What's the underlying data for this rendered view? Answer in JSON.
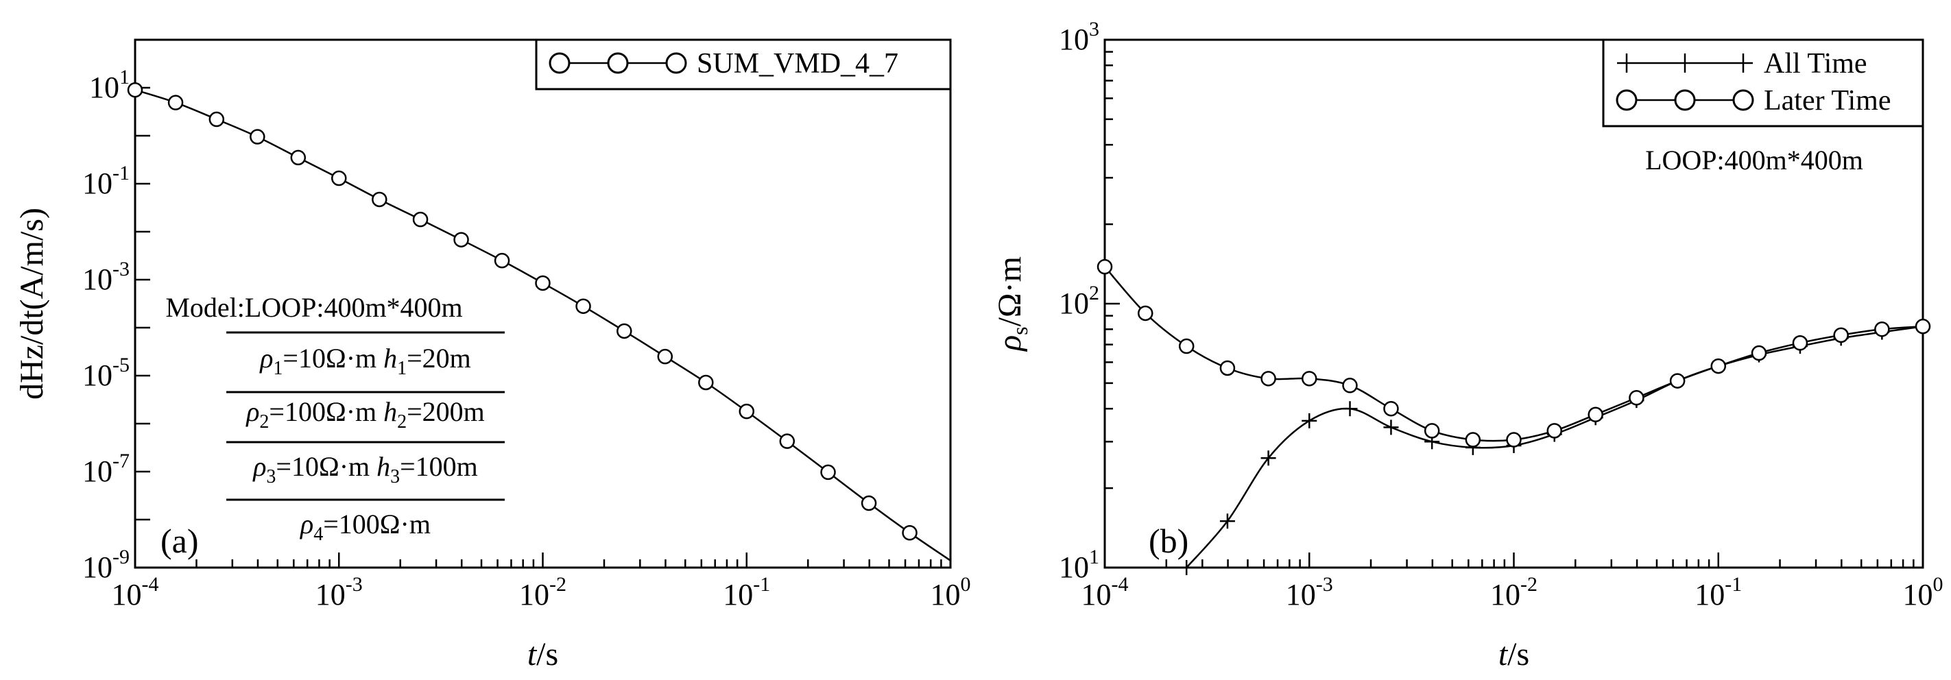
{
  "chart_data": [
    {
      "panel": "(a)",
      "type": "line",
      "xlabel_italic": "t",
      "xlabel_rest": "/s",
      "ylabel": "dHz/dt(A/m/s)",
      "x_scale": "log",
      "y_scale": "log",
      "xlim": [
        0.0001,
        1
      ],
      "ylim": [
        1e-09,
        100
      ],
      "x_ticks": [
        {
          "value": 0.0001,
          "base": "10",
          "exp": "-4"
        },
        {
          "value": 0.001,
          "base": "10",
          "exp": "-3"
        },
        {
          "value": 0.01,
          "base": "10",
          "exp": "-2"
        },
        {
          "value": 0.1,
          "base": "10",
          "exp": "-1"
        },
        {
          "value": 1,
          "base": "10",
          "exp": "0"
        }
      ],
      "y_ticks": [
        {
          "value": 10,
          "base": "10",
          "exp": "1"
        },
        {
          "value": 0.1,
          "base": "10",
          "exp": "-1"
        },
        {
          "value": 0.001,
          "base": "10",
          "exp": "-3"
        },
        {
          "value": 1e-05,
          "base": "10",
          "exp": "-5"
        },
        {
          "value": 1e-07,
          "base": "10",
          "exp": "-7"
        },
        {
          "value": 1e-09,
          "base": "10",
          "exp": "-9"
        }
      ],
      "legend_position": "top-right",
      "series": [
        {
          "name": "SUM_VMD_4_7",
          "marker": "circle",
          "x": [
            0.0001,
            0.000158,
            0.000251,
            0.000398,
            0.000631,
            0.001,
            0.00158,
            0.00251,
            0.00398,
            0.00631,
            0.01,
            0.0158,
            0.0251,
            0.0398,
            0.0631,
            0.1,
            0.158,
            0.251,
            0.398,
            0.631,
            1
          ],
          "y": [
            9.0,
            4.9,
            2.2,
            0.95,
            0.35,
            0.13,
            0.047,
            0.018,
            0.0068,
            0.0025,
            0.00085,
            0.00028,
            8.5e-05,
            2.5e-05,
            7.2e-06,
            1.8e-06,
            4.3e-07,
            9.7e-08,
            2.2e-08,
            5.3e-09,
            1.4e-09
          ]
        }
      ],
      "annotations": {
        "label": "(a)",
        "model_title": "Model:LOOP:400m*400m",
        "layers": [
          {
            "rho_sym": "ρ",
            "rho_sub": "1",
            "rho_val": "=10Ω·m",
            "h_sym": "h",
            "h_sub": "1",
            "h_val": "=20m"
          },
          {
            "rho_sym": "ρ",
            "rho_sub": "2",
            "rho_val": "=100Ω·m",
            "h_sym": "h",
            "h_sub": "2",
            "h_val": "=200m"
          },
          {
            "rho_sym": "ρ",
            "rho_sub": "3",
            "rho_val": "=10Ω·m",
            "h_sym": "h",
            "h_sub": "3",
            "h_val": "=100m"
          },
          {
            "rho_sym": "ρ",
            "rho_sub": "4",
            "rho_val": "=100Ω·m",
            "h_sym": "",
            "h_sub": "",
            "h_val": ""
          }
        ]
      }
    },
    {
      "panel": "(b)",
      "type": "line",
      "xlabel_italic": "t",
      "xlabel_rest": "/s",
      "ylabel_italic": "ρ",
      "ylabel_sub": "s",
      "ylabel_rest": "/Ω·m",
      "x_scale": "log",
      "y_scale": "log",
      "xlim": [
        0.0001,
        1
      ],
      "ylim": [
        10,
        1000
      ],
      "x_ticks": [
        {
          "value": 0.0001,
          "base": "10",
          "exp": "-4"
        },
        {
          "value": 0.001,
          "base": "10",
          "exp": "-3"
        },
        {
          "value": 0.01,
          "base": "10",
          "exp": "-2"
        },
        {
          "value": 0.1,
          "base": "10",
          "exp": "-1"
        },
        {
          "value": 1,
          "base": "10",
          "exp": "0"
        }
      ],
      "y_ticks": [
        {
          "value": 10,
          "base": "10",
          "exp": "1"
        },
        {
          "value": 100,
          "base": "10",
          "exp": "2"
        },
        {
          "value": 1000,
          "base": "10",
          "exp": "3"
        }
      ],
      "legend_position": "top-right",
      "series": [
        {
          "name": "All Time",
          "marker": "plus",
          "x": [
            0.000251,
            0.000398,
            0.000631,
            0.001,
            0.00158,
            0.00251,
            0.00398,
            0.00631,
            0.01,
            0.0158,
            0.0251,
            0.0398,
            0.0631,
            0.1,
            0.158,
            0.251,
            0.398,
            0.631,
            1
          ],
          "y": [
            10,
            15,
            26,
            36,
            40,
            34,
            30,
            28.5,
            29,
            32,
            37,
            43,
            51,
            58,
            64,
            69,
            74,
            78,
            82
          ]
        },
        {
          "name": "Later Time",
          "marker": "circle",
          "x": [
            0.0001,
            0.000158,
            0.000251,
            0.000398,
            0.000631,
            0.001,
            0.00158,
            0.00251,
            0.00398,
            0.00631,
            0.01,
            0.0158,
            0.0251,
            0.0398,
            0.0631,
            0.1,
            0.158,
            0.251,
            0.398,
            0.631,
            1
          ],
          "y": [
            138,
            92,
            69,
            57,
            52,
            52,
            49,
            40,
            33,
            30.5,
            30.5,
            33,
            38,
            44,
            51,
            58,
            65,
            71,
            76,
            80,
            82
          ]
        }
      ],
      "annotations": {
        "label": "(b)",
        "loop_text": "LOOP:400m*400m"
      }
    }
  ]
}
